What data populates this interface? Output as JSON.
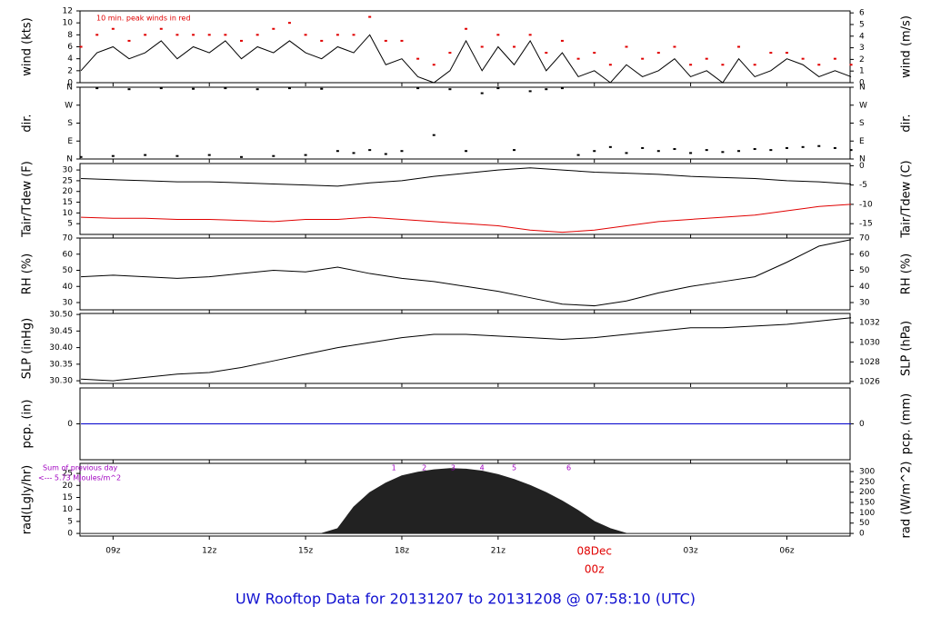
{
  "title": "UW Rooftop Data for 20131207  to  20131208 @ 07:58:10  (UTC)",
  "chart_data": [
    {
      "type": "line",
      "ylabel": "wind (kts)",
      "y2label": "wind (m/s)",
      "annotation": "10 min. peak winds in red",
      "xlim": [
        7.97,
        31.97
      ],
      "ylim": [
        0,
        12
      ],
      "yticks": [
        0,
        2,
        4,
        6,
        8,
        10,
        12
      ],
      "y2lim": [
        0,
        6.17
      ],
      "y2ticks": [
        0,
        1,
        2,
        3,
        4,
        5,
        6
      ],
      "x": [
        8,
        8.5,
        9,
        9.5,
        10,
        10.5,
        11,
        11.5,
        12,
        12.5,
        13,
        13.5,
        14,
        14.5,
        15,
        15.5,
        16,
        16.5,
        17,
        17.5,
        18,
        18.5,
        19,
        19.5,
        20,
        20.5,
        21,
        21.5,
        22,
        22.5,
        23,
        23.5,
        24,
        24.5,
        25,
        25.5,
        26,
        26.5,
        27,
        27.5,
        28,
        28.5,
        29,
        29.5,
        30,
        30.5,
        31,
        31.5,
        32
      ],
      "series": [
        {
          "color": "#000000",
          "values": [
            2,
            5,
            6,
            4,
            5,
            7,
            4,
            6,
            5,
            7,
            4,
            6,
            5,
            7,
            5,
            4,
            6,
            5,
            8,
            3,
            4,
            1,
            0,
            2,
            7,
            2,
            6,
            3,
            7,
            2,
            5,
            1,
            2,
            0,
            3,
            1,
            2,
            4,
            1,
            2,
            0,
            4,
            1,
            2,
            4,
            3,
            1,
            2,
            1
          ]
        },
        {
          "color": "#e00000",
          "style": "points",
          "values": [
            6,
            8,
            9,
            7,
            8,
            9,
            8,
            8,
            8,
            8,
            7,
            8,
            9,
            10,
            8,
            7,
            8,
            8,
            11,
            7,
            7,
            4,
            3,
            5,
            9,
            6,
            8,
            6,
            8,
            5,
            7,
            4,
            5,
            3,
            6,
            4,
            5,
            6,
            3,
            4,
            3,
            6,
            3,
            5,
            5,
            4,
            3,
            4,
            3
          ]
        }
      ]
    },
    {
      "type": "scatter",
      "ylabel": "dir.",
      "y2label": "dir.",
      "xlim": [
        7.97,
        31.97
      ],
      "ylim": [
        0,
        360
      ],
      "yticks": [
        {
          "value": 0,
          "label": "N"
        },
        {
          "value": 90,
          "label": "E"
        },
        {
          "value": 180,
          "label": "S"
        },
        {
          "value": 270,
          "label": "W"
        },
        {
          "value": 360,
          "label": "N"
        }
      ],
      "x": [
        8,
        8.5,
        9,
        9.5,
        10,
        10.5,
        11,
        11.5,
        12,
        12.5,
        13,
        13.5,
        14,
        14.5,
        15,
        15.5,
        16,
        16.5,
        17,
        17.5,
        18,
        18.5,
        19,
        19.5,
        20,
        20.5,
        21,
        21.5,
        22,
        22.5,
        23,
        23.5,
        24,
        24.5,
        25,
        25.5,
        26,
        26.5,
        27,
        27.5,
        28,
        28.5,
        29,
        29.5,
        30,
        30.5,
        31,
        31.5,
        32
      ],
      "series": [
        {
          "color": "#000000",
          "values": [
            10,
            355,
            15,
            350,
            20,
            355,
            15,
            352,
            20,
            355,
            10,
            350,
            15,
            355,
            20,
            352,
            40,
            30,
            45,
            25,
            40,
            355,
            120,
            350,
            40,
            330,
            355,
            45,
            340,
            350,
            355,
            20,
            40,
            60,
            30,
            55,
            40,
            50,
            30,
            45,
            35,
            40,
            50,
            45,
            55,
            60,
            65,
            55,
            45
          ]
        }
      ]
    },
    {
      "type": "line",
      "ylabel": "Tair/Tdew (F)",
      "y2label": "Tair/Tdew (C)",
      "xlim": [
        7.97,
        31.97
      ],
      "ylim": [
        0,
        33
      ],
      "yticks": [
        5,
        10,
        15,
        20,
        25,
        30
      ],
      "y2lim": [
        -17.78,
        0.56
      ],
      "y2ticks": [
        -15,
        -10,
        -5,
        0
      ],
      "x": [
        8,
        9,
        10,
        11,
        12,
        13,
        14,
        15,
        16,
        17,
        18,
        19,
        20,
        21,
        22,
        23,
        24,
        25,
        26,
        27,
        28,
        29,
        30,
        31,
        32
      ],
      "series": [
        {
          "color": "#000000",
          "values": [
            26,
            25.5,
            25,
            24.5,
            24.5,
            24,
            23.5,
            23,
            22.5,
            24,
            25,
            27,
            28.5,
            30,
            31,
            30,
            29,
            28.5,
            28,
            27,
            26.5,
            26,
            25,
            24.5,
            23.5
          ]
        },
        {
          "color": "#e00000",
          "values": [
            8,
            7.5,
            7.5,
            7,
            7,
            6.5,
            6,
            7,
            7,
            8,
            7,
            6,
            5,
            4,
            2,
            1,
            2,
            4,
            6,
            7,
            8,
            9,
            11,
            13,
            14
          ]
        }
      ]
    },
    {
      "type": "line",
      "ylabel": "RH (%)",
      "y2label": "RH (%)",
      "xlim": [
        7.97,
        31.97
      ],
      "ylim": [
        25.5,
        70
      ],
      "yticks": [
        30,
        40,
        50,
        60,
        70
      ],
      "x": [
        8,
        9,
        10,
        11,
        12,
        13,
        14,
        15,
        16,
        17,
        18,
        19,
        20,
        21,
        22,
        23,
        24,
        25,
        26,
        27,
        28,
        29,
        30,
        31,
        32
      ],
      "series": [
        {
          "color": "#000000",
          "values": [
            46,
            47,
            46,
            45,
            46,
            48,
            50,
            49,
            52,
            48,
            45,
            43,
            40,
            37,
            33,
            29,
            28,
            31,
            36,
            40,
            43,
            46,
            55,
            65,
            69
          ]
        }
      ]
    },
    {
      "type": "line",
      "ylabel": "SLP (inHg)",
      "y2label": "SLP (hPa)",
      "xlim": [
        7.97,
        31.97
      ],
      "ylim": [
        30.292,
        30.503
      ],
      "yticks": [
        {
          "value": 30.3,
          "label": "30.30"
        },
        {
          "value": 30.35,
          "label": "30.35"
        },
        {
          "value": 30.4,
          "label": "30.40"
        },
        {
          "value": 30.45,
          "label": "30.45"
        },
        {
          "value": 30.5,
          "label": "30.50"
        }
      ],
      "y2lim": [
        1025.8,
        1032.95
      ],
      "y2ticks": [
        1026,
        1028,
        1030,
        1032
      ],
      "x": [
        8,
        9,
        10,
        11,
        12,
        13,
        14,
        15,
        16,
        17,
        18,
        19,
        20,
        21,
        22,
        23,
        24,
        25,
        26,
        27,
        28,
        29,
        30,
        31,
        32
      ],
      "series": [
        {
          "color": "#000000",
          "values": [
            30.305,
            30.3,
            30.31,
            30.32,
            30.325,
            30.34,
            30.36,
            30.38,
            30.4,
            30.415,
            30.43,
            30.44,
            30.44,
            30.435,
            30.43,
            30.425,
            30.43,
            30.44,
            30.45,
            30.46,
            30.46,
            30.465,
            30.47,
            30.48,
            30.49
          ]
        }
      ]
    },
    {
      "type": "line",
      "ylabel": "pcp. (in)",
      "y2label": "pcp. (mm)",
      "xlim": [
        7.97,
        31.97
      ],
      "ylim": [
        -1,
        1
      ],
      "yticks": [
        0
      ],
      "y2lim": [
        -25.4,
        25.4
      ],
      "y2ticks": [
        0
      ],
      "x": [
        8,
        9,
        10,
        11,
        12,
        13,
        14,
        15,
        16,
        17,
        18,
        19,
        20,
        21,
        22,
        23,
        24,
        25,
        26,
        27,
        28,
        29,
        30,
        31,
        32
      ],
      "series": [
        {
          "color": "#0000cc",
          "values": [
            0,
            0,
            0,
            0,
            0,
            0,
            0,
            0,
            0,
            0,
            0,
            0,
            0,
            0,
            0,
            0,
            0,
            0,
            0,
            0,
            0,
            0,
            0,
            0,
            0
          ]
        }
      ]
    },
    {
      "type": "area",
      "ylabel": "rad(Lgly/hr)",
      "y2label": "rad (W/m^2)",
      "annotations": [
        "Sum of previous day",
        "<--- 5.73 MJoules/m^2"
      ],
      "markers": {
        "x": [
          17.75,
          18.7,
          19.6,
          20.5,
          21.5,
          23.2
        ],
        "labels": [
          1,
          2,
          3,
          4,
          5,
          6
        ]
      },
      "xlim": [
        7.97,
        31.97
      ],
      "ylim": [
        -1.1,
        29.2
      ],
      "yticks": [
        0,
        5,
        10,
        15,
        20,
        25
      ],
      "y2lim": [
        -12.8,
        339.6
      ],
      "y2ticks": [
        0,
        50,
        100,
        150,
        200,
        250,
        300
      ],
      "xticks": [
        {
          "value": 9,
          "label": "09z"
        },
        {
          "value": 12,
          "label": "12z"
        },
        {
          "value": 15,
          "label": "15z"
        },
        {
          "value": 18,
          "label": "18z"
        },
        {
          "value": 21,
          "label": "21z"
        },
        {
          "value": 24,
          "label": "00z",
          "color": "#e00000"
        },
        {
          "value": 27,
          "label": "03z"
        },
        {
          "value": 30,
          "label": "06z"
        }
      ],
      "x_annotation": {
        "text": "08Dec",
        "x": 24,
        "color": "#e00000"
      },
      "x": [
        8,
        15.5,
        16,
        16.5,
        17,
        17.5,
        18,
        18.5,
        19,
        19.5,
        20,
        20.5,
        21,
        21.5,
        22,
        22.5,
        23,
        23.5,
        24,
        24.5,
        25,
        32
      ],
      "series": [
        {
          "color": "#222222",
          "values": [
            0,
            0,
            2,
            11,
            17,
            21,
            24,
            25.5,
            26.5,
            27,
            26.8,
            26,
            24.5,
            22.5,
            20,
            17,
            13.5,
            9.5,
            5,
            2,
            0,
            0
          ]
        }
      ]
    }
  ]
}
